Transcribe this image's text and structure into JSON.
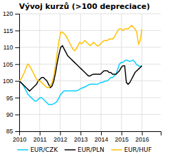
{
  "chart_data": {
    "type": "line",
    "title": "Vývoj kurzů (>100 depreciace)",
    "x": [
      2010,
      2010.0845,
      2010.169,
      2010.2535,
      2010.338,
      2010.4225,
      2010.507,
      2010.5915,
      2010.6761,
      2010.7606,
      2010.8451,
      2010.9296,
      2011.0141,
      2011.0986,
      2011.1831,
      2011.2676,
      2011.3521,
      2011.4366,
      2011.5211,
      2011.6056,
      2011.6901,
      2011.7746,
      2011.8592,
      2011.9437,
      2012.0282,
      2012.1127,
      2012.1972,
      2012.2817,
      2012.3662,
      2012.4507,
      2012.5352,
      2012.6197,
      2012.7042,
      2012.7887,
      2012.8732,
      2012.9577,
      2013.0423,
      2013.1268,
      2013.2113,
      2013.2958,
      2013.3803,
      2013.4648,
      2013.5493,
      2013.6338,
      2013.7183,
      2013.8028,
      2013.8873,
      2013.9718,
      2014.0563,
      2014.1408,
      2014.2254,
      2014.3099,
      2014.3944,
      2014.4789,
      2014.5634,
      2014.6479,
      2014.7324,
      2014.8169,
      2014.9014,
      2014.9859,
      2015.0704,
      2015.1549,
      2015.2394,
      2015.3239,
      2015.4085,
      2015.493,
      2015.5775,
      2015.662,
      2015.7465,
      2015.831,
      2015.9155,
      2016
    ],
    "series": [
      {
        "name": "EUR/CZK",
        "color": "#00cfff",
        "values": [
          100.0,
          99.5,
          99.0,
          98.0,
          97.0,
          96.0,
          95.5,
          95.0,
          94.5,
          94.0,
          94.0,
          94.5,
          95.0,
          95.0,
          94.5,
          94.0,
          93.5,
          93.0,
          93.0,
          93.0,
          93.2,
          93.5,
          94.0,
          95.0,
          96.0,
          96.5,
          97.0,
          97.0,
          97.0,
          97.0,
          97.0,
          97.0,
          97.0,
          97.0,
          97.2,
          97.5,
          97.8,
          98.0,
          98.2,
          98.5,
          98.8,
          99.0,
          99.0,
          99.0,
          99.0,
          99.0,
          99.2,
          99.5,
          99.5,
          99.8,
          100.0,
          100.0,
          100.5,
          101.0,
          101.0,
          101.5,
          102.0,
          103.5,
          105.0,
          105.5,
          105.5,
          106.0,
          106.2,
          106.0,
          105.8,
          106.0,
          106.2,
          105.5,
          104.8,
          104.5,
          104.3,
          104.5
        ]
      },
      {
        "name": "EUR/PLN",
        "color": "#000000",
        "values": [
          100.0,
          99.5,
          99.0,
          98.5,
          98.0,
          97.5,
          97.0,
          97.5,
          98.0,
          98.5,
          99.0,
          100.0,
          100.5,
          101.0,
          101.0,
          100.5,
          100.0,
          99.0,
          98.0,
          98.5,
          100.0,
          102.5,
          105.5,
          108.0,
          110.0,
          110.5,
          109.5,
          108.5,
          107.5,
          107.0,
          106.5,
          106.0,
          105.5,
          105.0,
          104.5,
          104.0,
          103.5,
          103.0,
          102.5,
          102.0,
          101.5,
          101.5,
          101.8,
          102.0,
          102.0,
          102.0,
          102.0,
          102.0,
          102.5,
          103.0,
          103.0,
          103.0,
          102.5,
          102.5,
          102.0,
          102.0,
          102.0,
          102.5,
          103.0,
          104.0,
          104.5,
          104.5,
          99.5,
          99.0,
          99.5,
          100.5,
          101.5,
          102.5,
          103.0,
          103.5,
          104.0,
          104.5
        ]
      },
      {
        "name": "EUR/HUF",
        "color": "#ffc000",
        "values": [
          100.0,
          100.5,
          101.5,
          102.5,
          104.0,
          105.0,
          104.5,
          103.5,
          102.5,
          101.5,
          100.5,
          100.0,
          100.0,
          99.5,
          99.0,
          98.5,
          98.0,
          98.0,
          98.5,
          99.5,
          101.5,
          104.5,
          108.5,
          112.0,
          114.5,
          114.5,
          114.0,
          113.5,
          112.5,
          111.5,
          110.5,
          109.5,
          109.0,
          109.5,
          110.5,
          111.5,
          111.0,
          111.5,
          112.0,
          111.5,
          111.0,
          110.5,
          111.0,
          111.5,
          111.0,
          110.5,
          110.5,
          111.0,
          111.5,
          112.0,
          112.0,
          112.0,
          112.5,
          112.5,
          112.5,
          113.0,
          114.0,
          115.0,
          115.5,
          115.5,
          115.0,
          115.5,
          115.5,
          115.5,
          116.0,
          116.5,
          116.0,
          115.5,
          114.5,
          111.0,
          112.0,
          115.5
        ]
      }
    ],
    "xlim": [
      2010.0,
      2016.92
    ],
    "xticks": [
      2010,
      2011,
      2012,
      2013,
      2014,
      2015,
      2016
    ],
    "ylim": [
      85,
      120
    ],
    "yticks": [
      85,
      90,
      95,
      100,
      105,
      110,
      115,
      120
    ],
    "grid": true,
    "legend": "bottom"
  }
}
